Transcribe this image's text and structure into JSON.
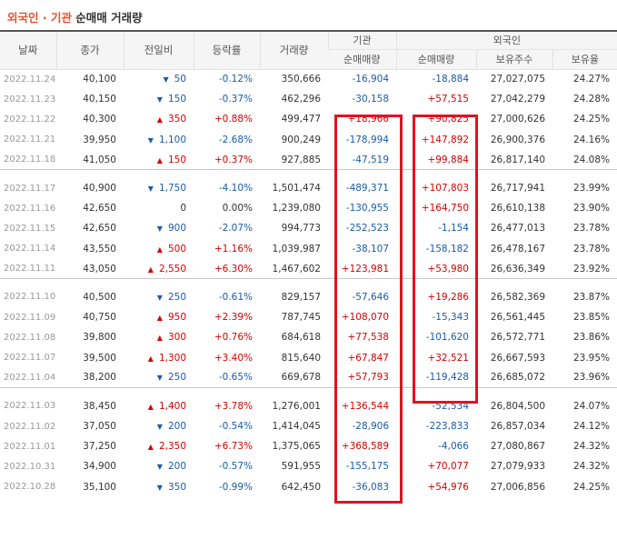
{
  "title": {
    "accent": "외국인 · 기관",
    "rest": " 순매매 거래량"
  },
  "headers": {
    "date": "날짜",
    "close": "종가",
    "change": "전일비",
    "rate": "등락률",
    "volume": "거래량",
    "institution": "기관",
    "institution_net": "순매매량",
    "foreign": "외국인",
    "foreign_net": "순매매량",
    "holdings": "보유주수",
    "holding_ratio": "보유율"
  },
  "colors": {
    "up": "#d60000",
    "down": "#1a5ba8",
    "accent": "#e8502e",
    "highlight": "#e2121f"
  },
  "icons": {
    "up": "triangle-up-icon",
    "down": "triangle-down-icon"
  },
  "rows": [
    {
      "date": "2022.11.24",
      "close": "40,100",
      "dir": "down",
      "change": "50",
      "rate": "-0.12%",
      "volume": "350,666",
      "inst": "-16,904",
      "forn": "-18,884",
      "hold": "27,027,075",
      "ratio": "24.27%"
    },
    {
      "date": "2022.11.23",
      "close": "40,150",
      "dir": "down",
      "change": "150",
      "rate": "-0.37%",
      "volume": "462,296",
      "inst": "-30,158",
      "forn": "+57,515",
      "hold": "27,042,279",
      "ratio": "24.28%"
    },
    {
      "date": "2022.11.22",
      "close": "40,300",
      "dir": "up",
      "change": "350",
      "rate": "+0.88%",
      "volume": "499,477",
      "inst": "+18,966",
      "forn": "+90,825",
      "hold": "27,000,626",
      "ratio": "24.25%"
    },
    {
      "date": "2022.11.21",
      "close": "39,950",
      "dir": "down",
      "change": "1,100",
      "rate": "-2.68%",
      "volume": "900,249",
      "inst": "-178,994",
      "forn": "+147,892",
      "hold": "26,900,376",
      "ratio": "24.16%"
    },
    {
      "date": "2022.11.18",
      "close": "41,050",
      "dir": "up",
      "change": "150",
      "rate": "+0.37%",
      "volume": "927,885",
      "inst": "-47,519",
      "forn": "+99,884",
      "hold": "26,817,140",
      "ratio": "24.08%"
    },
    {
      "date": "2022.11.17",
      "close": "40,900",
      "dir": "down",
      "change": "1,750",
      "rate": "-4.10%",
      "volume": "1,501,474",
      "inst": "-489,371",
      "forn": "+107,803",
      "hold": "26,717,941",
      "ratio": "23.99%"
    },
    {
      "date": "2022.11.16",
      "close": "42,650",
      "dir": "flat",
      "change": "0",
      "rate": "0.00%",
      "volume": "1,239,080",
      "inst": "-130,955",
      "forn": "+164,750",
      "hold": "26,610,138",
      "ratio": "23.90%"
    },
    {
      "date": "2022.11.15",
      "close": "42,650",
      "dir": "down",
      "change": "900",
      "rate": "-2.07%",
      "volume": "994,773",
      "inst": "-252,523",
      "forn": "-1,154",
      "hold": "26,477,013",
      "ratio": "23.78%"
    },
    {
      "date": "2022.11.14",
      "close": "43,550",
      "dir": "up",
      "change": "500",
      "rate": "+1.16%",
      "volume": "1,039,987",
      "inst": "-38,107",
      "forn": "-158,182",
      "hold": "26,478,167",
      "ratio": "23.78%"
    },
    {
      "date": "2022.11.11",
      "close": "43,050",
      "dir": "up",
      "change": "2,550",
      "rate": "+6.30%",
      "volume": "1,467,602",
      "inst": "+123,981",
      "forn": "+53,980",
      "hold": "26,636,349",
      "ratio": "23.92%"
    },
    {
      "date": "2022.11.10",
      "close": "40,500",
      "dir": "down",
      "change": "250",
      "rate": "-0.61%",
      "volume": "829,157",
      "inst": "-57,646",
      "forn": "+19,286",
      "hold": "26,582,369",
      "ratio": "23.87%"
    },
    {
      "date": "2022.11.09",
      "close": "40,750",
      "dir": "up",
      "change": "950",
      "rate": "+2.39%",
      "volume": "787,745",
      "inst": "+108,070",
      "forn": "-15,343",
      "hold": "26,561,445",
      "ratio": "23.85%"
    },
    {
      "date": "2022.11.08",
      "close": "39,800",
      "dir": "up",
      "change": "300",
      "rate": "+0.76%",
      "volume": "684,618",
      "inst": "+77,538",
      "forn": "-101,620",
      "hold": "26,572,771",
      "ratio": "23.86%"
    },
    {
      "date": "2022.11.07",
      "close": "39,500",
      "dir": "up",
      "change": "1,300",
      "rate": "+3.40%",
      "volume": "815,640",
      "inst": "+67,847",
      "forn": "+32,521",
      "hold": "26,667,593",
      "ratio": "23.95%"
    },
    {
      "date": "2022.11.04",
      "close": "38,200",
      "dir": "down",
      "change": "250",
      "rate": "-0.65%",
      "volume": "669,678",
      "inst": "+57,793",
      "forn": "-119,428",
      "hold": "26,685,072",
      "ratio": "23.96%"
    },
    {
      "date": "2022.11.03",
      "close": "38,450",
      "dir": "up",
      "change": "1,400",
      "rate": "+3.78%",
      "volume": "1,276,001",
      "inst": "+136,544",
      "forn": "-52,534",
      "hold": "26,804,500",
      "ratio": "24.07%"
    },
    {
      "date": "2022.11.02",
      "close": "37,050",
      "dir": "down",
      "change": "200",
      "rate": "-0.54%",
      "volume": "1,414,045",
      "inst": "-28,906",
      "forn": "-223,833",
      "hold": "26,857,034",
      "ratio": "24.12%"
    },
    {
      "date": "2022.11.01",
      "close": "37,250",
      "dir": "up",
      "change": "2,350",
      "rate": "+6.73%",
      "volume": "1,375,065",
      "inst": "+368,589",
      "forn": "-4,066",
      "hold": "27,080,867",
      "ratio": "24.32%"
    },
    {
      "date": "2022.10.31",
      "close": "34,900",
      "dir": "down",
      "change": "200",
      "rate": "-0.57%",
      "volume": "591,955",
      "inst": "-155,175",
      "forn": "+70,077",
      "hold": "27,079,933",
      "ratio": "24.32%"
    },
    {
      "date": "2022.10.28",
      "close": "35,100",
      "dir": "down",
      "change": "350",
      "rate": "-0.99%",
      "volume": "642,450",
      "inst": "-36,083",
      "forn": "+54,976",
      "hold": "27,006,856",
      "ratio": "24.25%"
    }
  ]
}
